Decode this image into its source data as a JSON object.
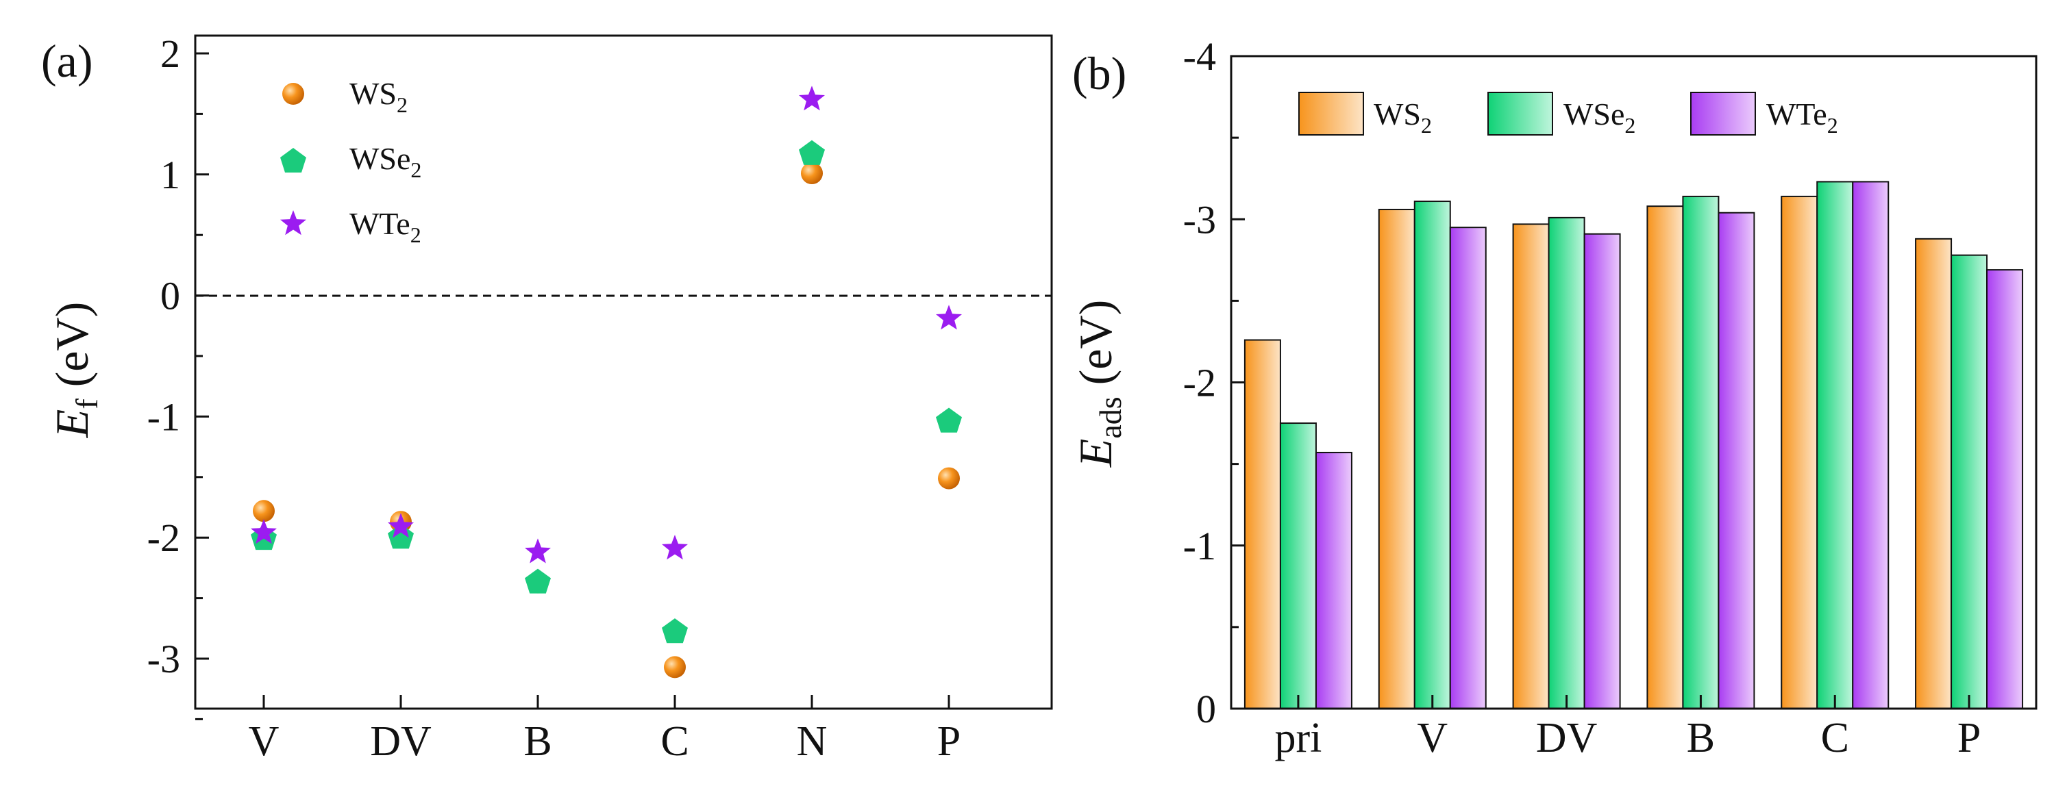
{
  "colors": {
    "ws2": "#F7941D",
    "wse2": "#1BCB7C",
    "wte2": "#9B1CF0",
    "axis": "#111111"
  },
  "chart_data": [
    {
      "type": "scatter",
      "panel_label": "(a)",
      "ylabel": "E",
      "ylabel_sub": "f",
      "ylabel_unit": " (eV)",
      "categories": [
        "V",
        "DV",
        "B",
        "C",
        "N",
        "P"
      ],
      "ylim": [
        -3.5,
        2
      ],
      "yticks": [
        "2",
        "1",
        "0",
        "-1",
        "-2",
        "-3"
      ],
      "ytick_values": [
        2,
        1,
        0,
        -1,
        -2,
        -3
      ],
      "reference_line": 0,
      "legend": [
        {
          "base": "WS",
          "sub": "2"
        },
        {
          "base": "WSe",
          "sub": "2"
        },
        {
          "base": "WTe",
          "sub": "2"
        }
      ],
      "series": [
        {
          "name": "WS2",
          "marker": "circle",
          "values": [
            -1.78,
            -1.87,
            -2.37,
            -3.07,
            1.01,
            -1.51
          ]
        },
        {
          "name": "WSe2",
          "marker": "pentagon",
          "values": [
            -2.01,
            -2.0,
            -2.37,
            -2.78,
            1.17,
            -1.04
          ]
        },
        {
          "name": "WTe2",
          "marker": "star",
          "values": [
            -1.96,
            -1.91,
            -2.12,
            -2.09,
            1.62,
            -0.19
          ]
        }
      ]
    },
    {
      "type": "bar",
      "panel_label": "(b)",
      "ylabel": "E",
      "ylabel_sub": "ads",
      "ylabel_unit": " (eV)",
      "categories": [
        "pri",
        "V",
        "DV",
        "B",
        "C",
        "P"
      ],
      "ylim": [
        0,
        -4
      ],
      "yticks": [
        "-4",
        "-3",
        "-2",
        "-1",
        "0"
      ],
      "ytick_values": [
        -4,
        -3,
        -2,
        -1,
        0
      ],
      "legend": [
        {
          "base": "WS",
          "sub": "2"
        },
        {
          "base": "WSe",
          "sub": "2"
        },
        {
          "base": "WTe",
          "sub": "2"
        }
      ],
      "series": [
        {
          "name": "WS2",
          "values": [
            -2.26,
            -3.06,
            -2.97,
            -3.08,
            -3.14,
            -2.88
          ]
        },
        {
          "name": "WSe2",
          "values": [
            -1.75,
            -3.11,
            -3.01,
            -3.14,
            -3.23,
            -2.78
          ]
        },
        {
          "name": "WTe2",
          "values": [
            -1.57,
            -2.95,
            -2.91,
            -3.04,
            -3.23,
            -2.69
          ]
        }
      ]
    }
  ]
}
